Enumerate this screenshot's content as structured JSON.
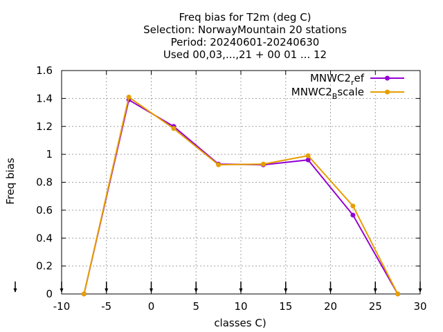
{
  "chart_data": {
    "type": "line",
    "title_lines": [
      "Freq bias  for T2m (deg C)",
      "Selection: NorwayMountain      20 stations",
      "Period: 20240601-20240630",
      "Used 00,03,...,21 + 00 01 ... 12"
    ],
    "xlabel": "classes C)",
    "ylabel": "Freq bias",
    "xlim": [
      -10,
      30
    ],
    "ylim": [
      0,
      1.6
    ],
    "x_ticks": [
      "-10",
      "-5",
      "0",
      "5",
      "10",
      "15",
      "20",
      "25",
      "30"
    ],
    "y_ticks": [
      "0",
      "0.2",
      "0.4",
      "0.6",
      "0.8",
      "1",
      "1.2",
      "1.4",
      "1.6"
    ],
    "grid": true,
    "legend_position": "top-right",
    "series": [
      {
        "name_main": "MNWC2",
        "name_sub": "r",
        "name_rest": "ef",
        "color": "#9400d3",
        "x": [
          -7.5,
          -2.5,
          2.5,
          7.5,
          12.5,
          17.5,
          22.5,
          27.5
        ],
        "values": [
          0.0,
          1.39,
          1.2,
          0.93,
          0.925,
          0.96,
          0.565,
          0.0
        ]
      },
      {
        "name_main": "MNWC2",
        "name_sub": "B",
        "name_rest": "scale",
        "color": "#e69f00",
        "x": [
          -7.5,
          -2.5,
          2.5,
          7.5,
          12.5,
          17.5,
          22.5,
          27.5
        ],
        "values": [
          0.0,
          1.41,
          1.185,
          0.925,
          0.93,
          0.99,
          0.63,
          0.0
        ]
      }
    ],
    "bottom_markers_x": [
      -10,
      -5,
      0,
      5,
      10,
      15,
      20,
      25,
      30
    ]
  }
}
